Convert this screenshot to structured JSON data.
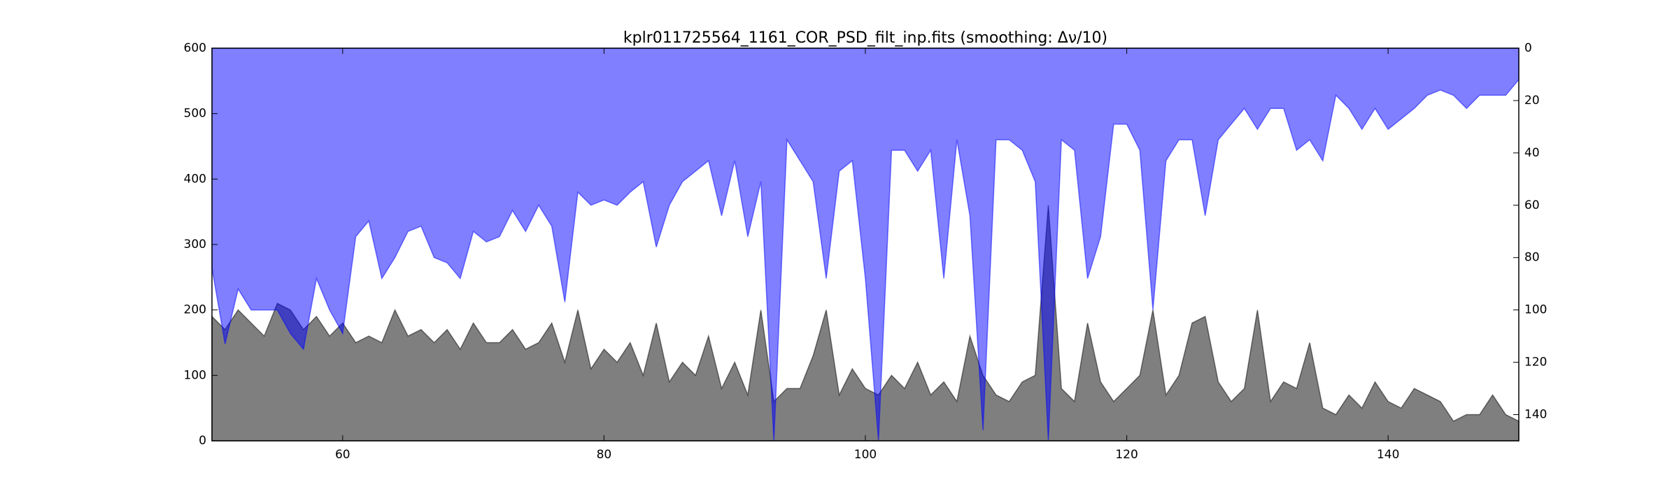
{
  "chart_data": {
    "type": "area",
    "title": "kplr011725564_1161_COR_PSD_filt_inp.fits (smoothing: Δν/10)",
    "x": [
      50,
      51,
      52,
      53,
      54,
      55,
      56,
      57,
      58,
      59,
      60,
      61,
      62,
      63,
      64,
      65,
      66,
      67,
      68,
      69,
      70,
      71,
      72,
      73,
      74,
      75,
      76,
      77,
      78,
      79,
      80,
      81,
      82,
      83,
      84,
      85,
      86,
      87,
      88,
      89,
      90,
      91,
      92,
      93,
      94,
      95,
      96,
      97,
      98,
      99,
      100,
      101,
      102,
      103,
      104,
      105,
      106,
      107,
      108,
      109,
      110,
      111,
      112,
      113,
      114,
      115,
      116,
      117,
      118,
      119,
      120,
      121,
      122,
      123,
      124,
      125,
      126,
      127,
      128,
      129,
      130,
      131,
      132,
      133,
      134,
      135,
      136,
      137,
      138,
      139,
      140,
      141,
      142,
      143,
      144,
      145,
      146,
      147,
      148,
      149,
      150
    ],
    "series": [
      {
        "name": "PSD",
        "color": "#000000",
        "alpha": 0.5,
        "axis": "y",
        "fill_from": "bottom",
        "values": [
          190,
          170,
          200,
          180,
          160,
          210,
          200,
          170,
          190,
          160,
          180,
          150,
          160,
          150,
          200,
          160,
          170,
          150,
          170,
          140,
          180,
          150,
          150,
          170,
          140,
          150,
          180,
          120,
          200,
          110,
          140,
          120,
          150,
          100,
          180,
          90,
          120,
          100,
          160,
          80,
          120,
          70,
          200,
          60,
          80,
          80,
          130,
          200,
          70,
          110,
          80,
          70,
          100,
          80,
          120,
          70,
          90,
          60,
          160,
          100,
          70,
          60,
          90,
          100,
          360,
          80,
          60,
          180,
          90,
          60,
          80,
          100,
          200,
          70,
          100,
          180,
          190,
          90,
          60,
          80,
          200,
          60,
          90,
          80,
          150,
          50,
          40,
          70,
          50,
          90,
          60,
          50,
          80,
          70,
          60,
          30,
          40,
          40,
          70,
          40,
          30
        ]
      },
      {
        "name": "Smoothed",
        "color": "#0000ff",
        "alpha": 0.5,
        "axis": "y2",
        "fill_from": "top",
        "values": [
          84,
          113,
          92,
          100,
          100,
          100,
          109,
          115,
          88,
          100,
          109,
          72,
          66,
          88,
          80,
          70,
          68,
          80,
          82,
          88,
          70,
          74,
          72,
          62,
          70,
          60,
          68,
          97,
          55,
          60,
          58,
          60,
          55,
          51,
          76,
          60,
          51,
          47,
          43,
          64,
          43,
          72,
          51,
          150,
          35,
          43,
          51,
          88,
          47,
          43,
          88,
          150,
          39,
          39,
          47,
          39,
          88,
          35,
          64,
          146,
          35,
          35,
          39,
          51,
          150,
          35,
          39,
          88,
          72,
          29,
          29,
          39,
          100,
          43,
          35,
          35,
          64,
          35,
          29,
          23,
          31,
          23,
          23,
          39,
          35,
          43,
          18,
          23,
          31,
          23,
          31,
          27,
          23,
          18,
          16,
          18,
          23,
          18,
          18,
          18,
          12
        ]
      }
    ],
    "xlim": [
      50,
      150
    ],
    "xticks": [
      60,
      80,
      100,
      120,
      140
    ],
    "ylim": [
      0,
      600
    ],
    "yticks": [
      0,
      100,
      200,
      300,
      400,
      500,
      600
    ],
    "y2lim": [
      0,
      150
    ],
    "y2_inverted": true,
    "y2ticks": [
      0,
      20,
      40,
      60,
      80,
      100,
      120,
      140
    ]
  }
}
